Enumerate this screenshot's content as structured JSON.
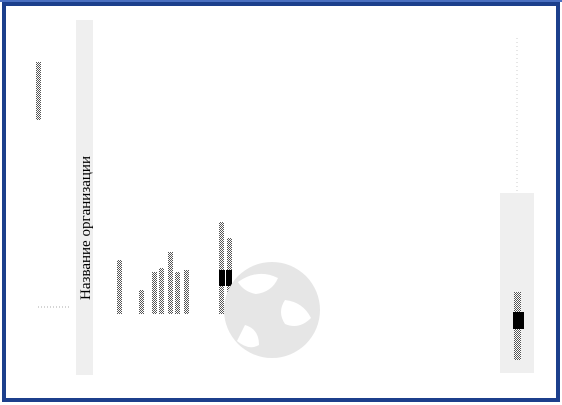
{
  "card": {
    "organization_name": "Название организации"
  }
}
